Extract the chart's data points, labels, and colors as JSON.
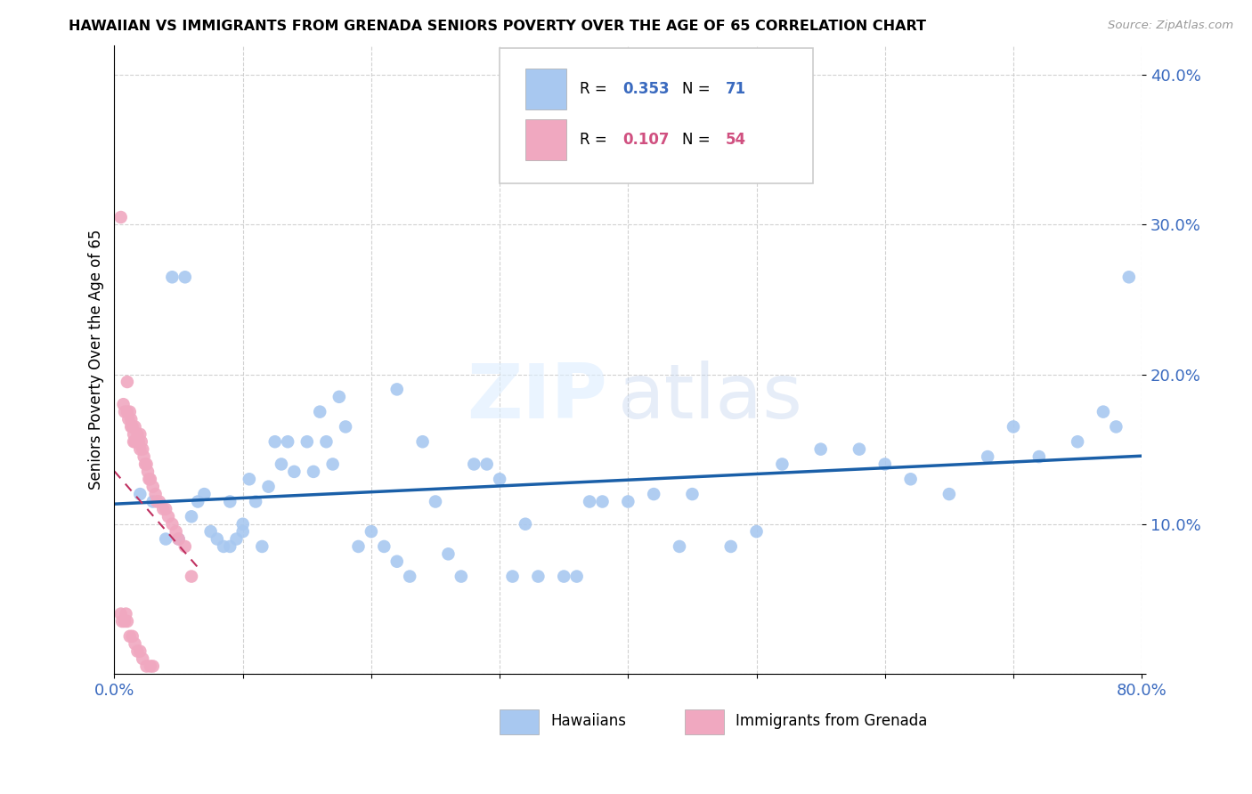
{
  "title": "HAWAIIAN VS IMMIGRANTS FROM GRENADA SENIORS POVERTY OVER THE AGE OF 65 CORRELATION CHART",
  "source": "Source: ZipAtlas.com",
  "ylabel": "Seniors Poverty Over the Age of 65",
  "xlim": [
    0.0,
    0.8
  ],
  "ylim": [
    0.0,
    0.42
  ],
  "hawaiian_color": "#a8c8f0",
  "grenada_color": "#f0a8c0",
  "hawaiian_line_color": "#1a5fa8",
  "grenada_line_color": "#c03060",
  "grid_color": "#cccccc",
  "watermark_zip": "ZIP",
  "watermark_atlas": "atlas",
  "r_hawaiian": "0.353",
  "n_hawaiian": "71",
  "r_grenada": "0.107",
  "n_grenada": "54",
  "blue_text_color": "#3a6abf",
  "pink_text_color": "#d05080",
  "hawaiian_x": [
    0.02,
    0.03,
    0.04,
    0.045,
    0.05,
    0.055,
    0.06,
    0.065,
    0.07,
    0.075,
    0.08,
    0.085,
    0.09,
    0.09,
    0.095,
    0.1,
    0.1,
    0.105,
    0.11,
    0.115,
    0.12,
    0.125,
    0.13,
    0.135,
    0.14,
    0.15,
    0.155,
    0.16,
    0.165,
    0.17,
    0.175,
    0.18,
    0.19,
    0.2,
    0.21,
    0.22,
    0.23,
    0.25,
    0.26,
    0.28,
    0.3,
    0.32,
    0.33,
    0.35,
    0.37,
    0.4,
    0.42,
    0.45,
    0.48,
    0.5,
    0.52,
    0.55,
    0.58,
    0.6,
    0.62,
    0.65,
    0.68,
    0.7,
    0.72,
    0.75,
    0.77,
    0.79,
    0.22,
    0.24,
    0.27,
    0.29,
    0.31,
    0.36,
    0.38,
    0.44,
    0.78
  ],
  "hawaiian_y": [
    0.12,
    0.115,
    0.09,
    0.265,
    0.09,
    0.265,
    0.105,
    0.115,
    0.12,
    0.095,
    0.09,
    0.085,
    0.115,
    0.085,
    0.09,
    0.1,
    0.095,
    0.13,
    0.115,
    0.085,
    0.125,
    0.155,
    0.14,
    0.155,
    0.135,
    0.155,
    0.135,
    0.175,
    0.155,
    0.14,
    0.185,
    0.165,
    0.085,
    0.095,
    0.085,
    0.075,
    0.065,
    0.115,
    0.08,
    0.14,
    0.13,
    0.1,
    0.065,
    0.065,
    0.115,
    0.115,
    0.12,
    0.12,
    0.085,
    0.095,
    0.14,
    0.15,
    0.15,
    0.14,
    0.13,
    0.12,
    0.145,
    0.165,
    0.145,
    0.155,
    0.175,
    0.265,
    0.19,
    0.155,
    0.065,
    0.14,
    0.065,
    0.065,
    0.115,
    0.085,
    0.165
  ],
  "grenada_x": [
    0.005,
    0.007,
    0.008,
    0.01,
    0.01,
    0.011,
    0.012,
    0.013,
    0.013,
    0.014,
    0.015,
    0.015,
    0.016,
    0.016,
    0.017,
    0.018,
    0.018,
    0.019,
    0.02,
    0.02,
    0.021,
    0.022,
    0.023,
    0.024,
    0.025,
    0.026,
    0.027,
    0.028,
    0.03,
    0.032,
    0.033,
    0.035,
    0.038,
    0.04,
    0.042,
    0.045,
    0.048,
    0.05,
    0.055,
    0.06,
    0.005,
    0.006,
    0.008,
    0.009,
    0.01,
    0.012,
    0.014,
    0.016,
    0.018,
    0.02,
    0.022,
    0.025,
    0.028,
    0.03
  ],
  "grenada_y": [
    0.305,
    0.18,
    0.175,
    0.195,
    0.175,
    0.17,
    0.175,
    0.17,
    0.165,
    0.165,
    0.16,
    0.155,
    0.165,
    0.155,
    0.155,
    0.16,
    0.155,
    0.155,
    0.16,
    0.15,
    0.155,
    0.15,
    0.145,
    0.14,
    0.14,
    0.135,
    0.13,
    0.13,
    0.125,
    0.12,
    0.115,
    0.115,
    0.11,
    0.11,
    0.105,
    0.1,
    0.095,
    0.09,
    0.085,
    0.065,
    0.04,
    0.035,
    0.035,
    0.04,
    0.035,
    0.025,
    0.025,
    0.02,
    0.015,
    0.015,
    0.01,
    0.005,
    0.005,
    0.005
  ]
}
